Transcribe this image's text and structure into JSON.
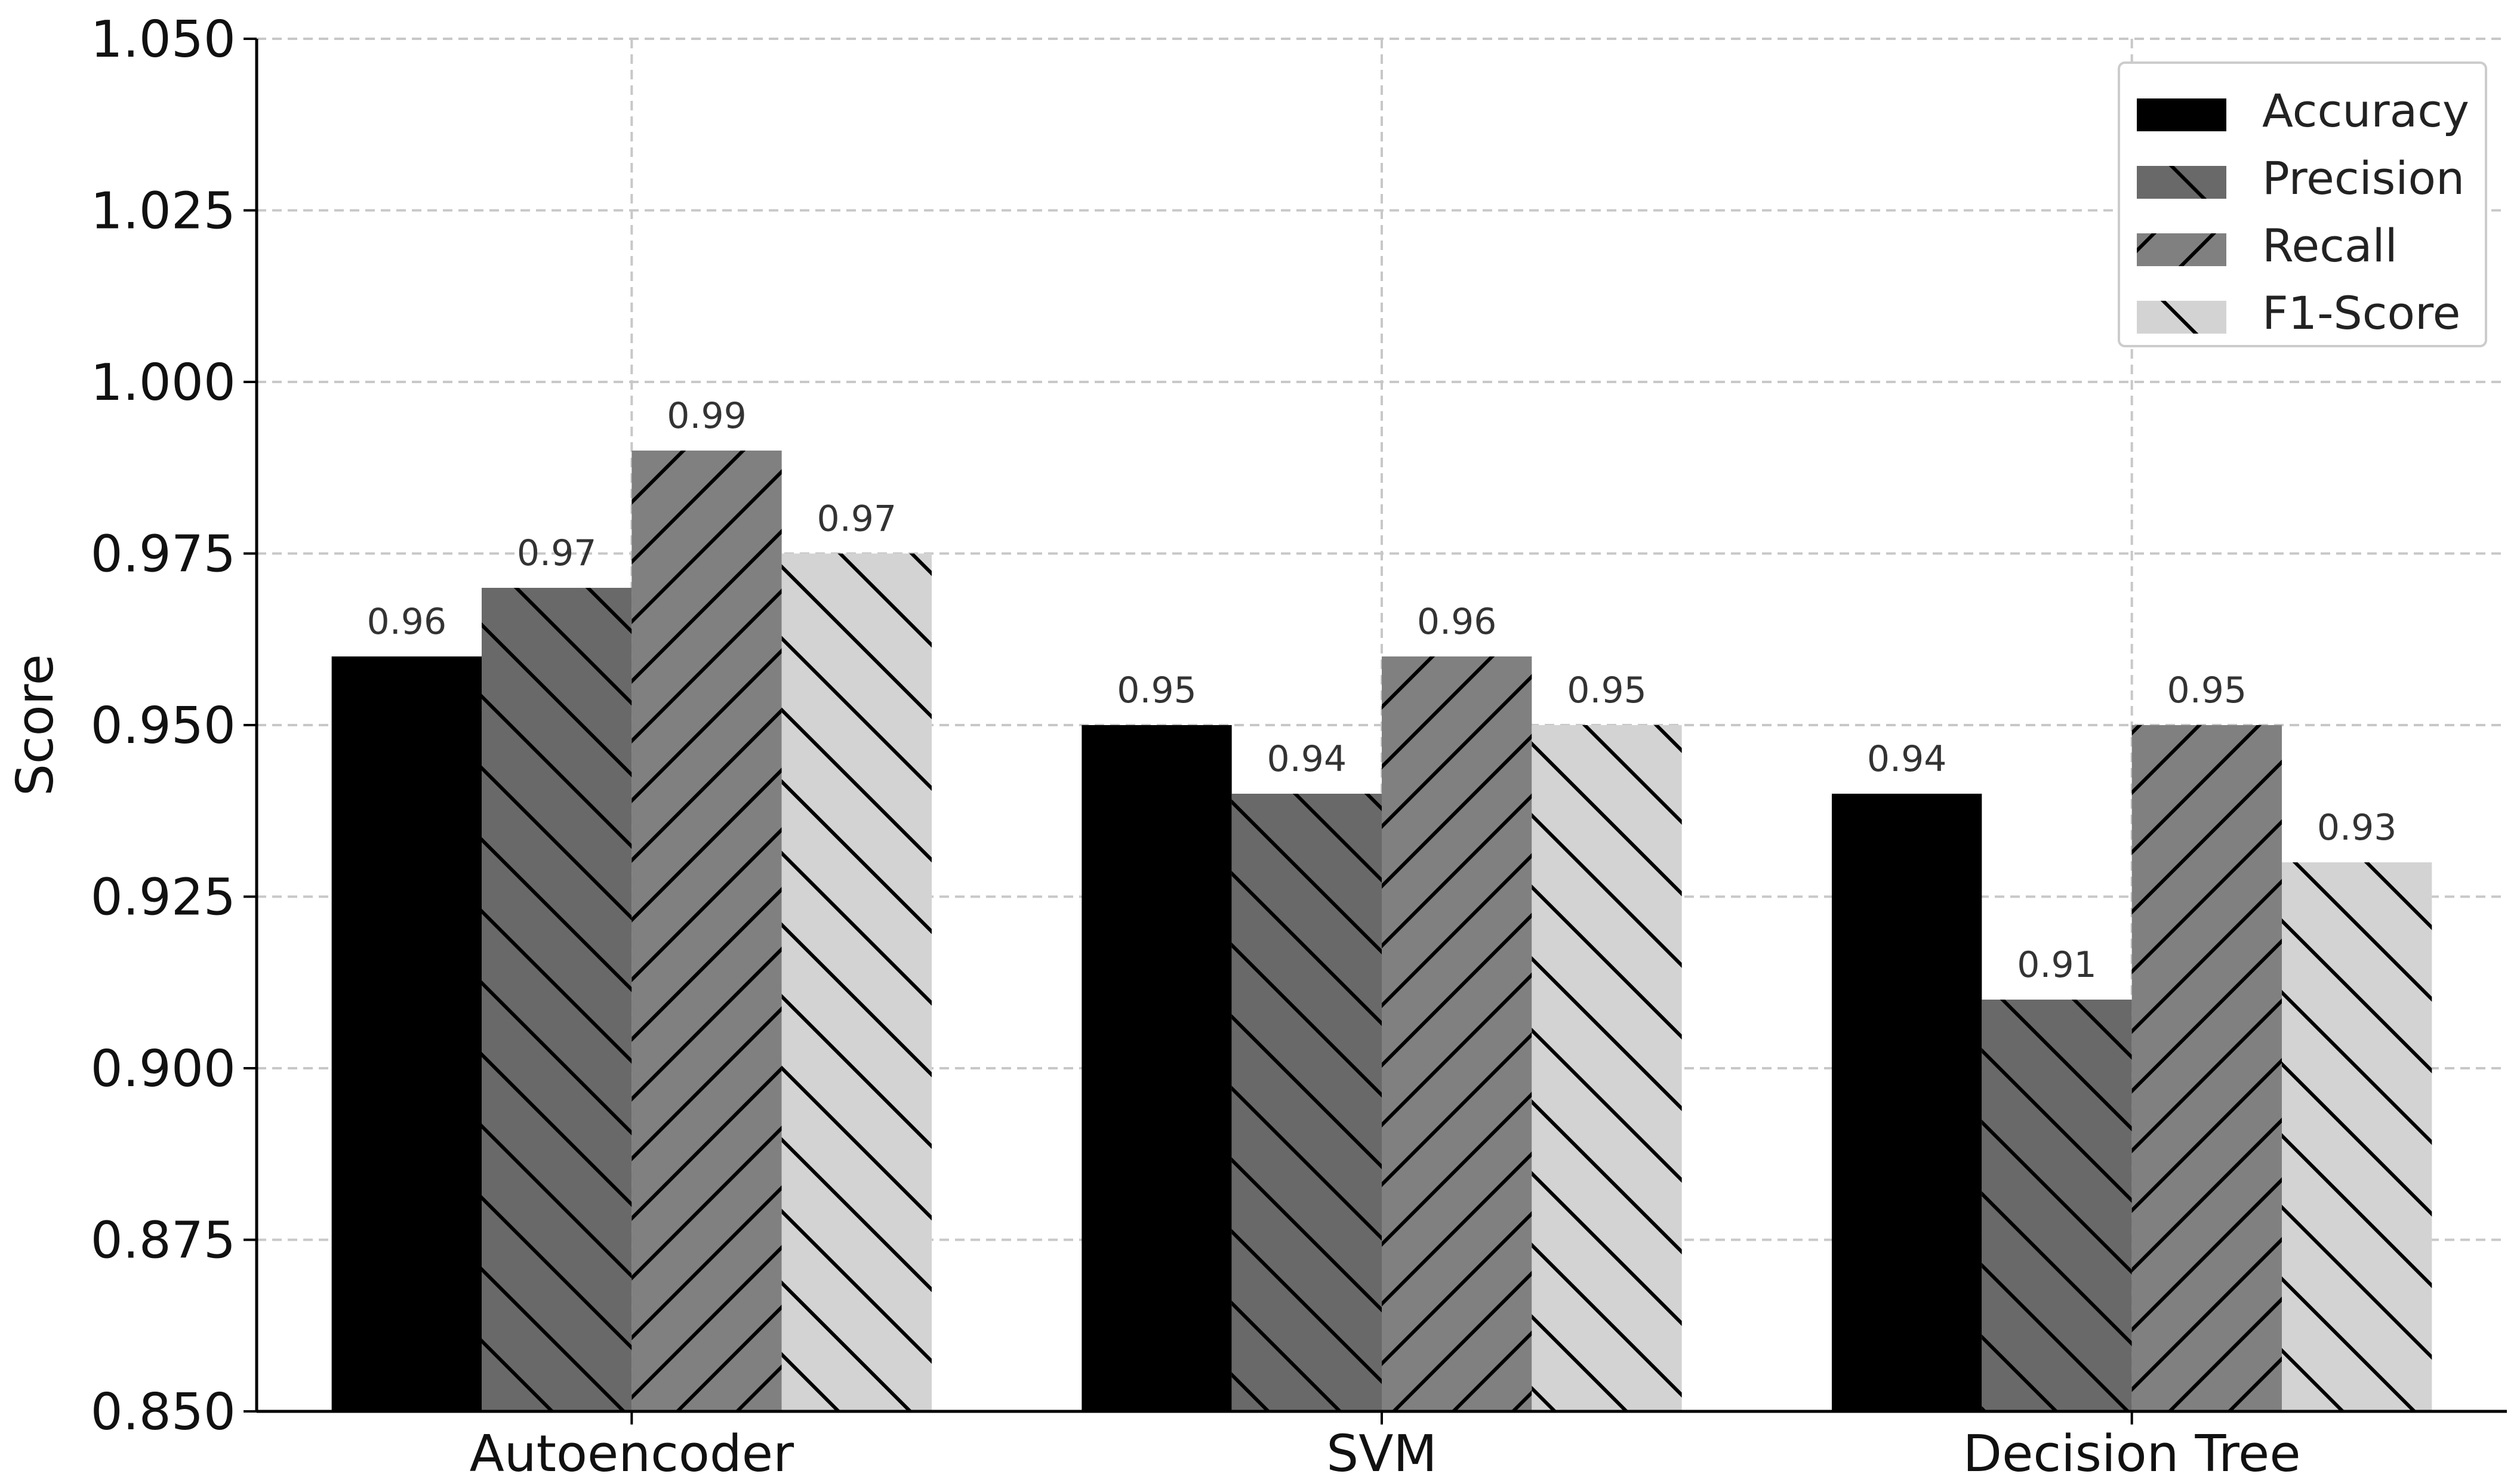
{
  "chart_data": {
    "type": "bar",
    "title": "",
    "xlabel": "",
    "ylabel": "Score",
    "ylim": [
      0.85,
      1.05
    ],
    "yticks": [
      "0.850",
      "0.875",
      "0.900",
      "0.925",
      "0.950",
      "0.975",
      "1.000",
      "1.025",
      "1.050"
    ],
    "grid": true,
    "legend_position": "top-right",
    "categories": [
      "Autoencoder",
      "SVM",
      "Decision Tree"
    ],
    "series": [
      {
        "name": "Accuracy",
        "values": [
          0.96,
          0.95,
          0.94
        ],
        "labels": [
          "0.96",
          "0.95",
          "0.94"
        ],
        "color": "#000000",
        "hatch": "none"
      },
      {
        "name": "Precision",
        "values": [
          0.97,
          0.94,
          0.91
        ],
        "labels": [
          "0.97",
          "0.94",
          "0.91"
        ],
        "color": "#696969",
        "hatch": "backslash"
      },
      {
        "name": "Recall",
        "values": [
          0.99,
          0.96,
          0.95
        ],
        "labels": [
          "0.99",
          "0.96",
          "0.95"
        ],
        "color": "#808080",
        "hatch": "slash"
      },
      {
        "name": "F1-Score",
        "values": [
          0.975,
          0.95,
          0.93
        ],
        "labels": [
          "0.97",
          "0.95",
          "0.93"
        ],
        "color": "#d3d3d3",
        "hatch": "backslash"
      }
    ]
  }
}
